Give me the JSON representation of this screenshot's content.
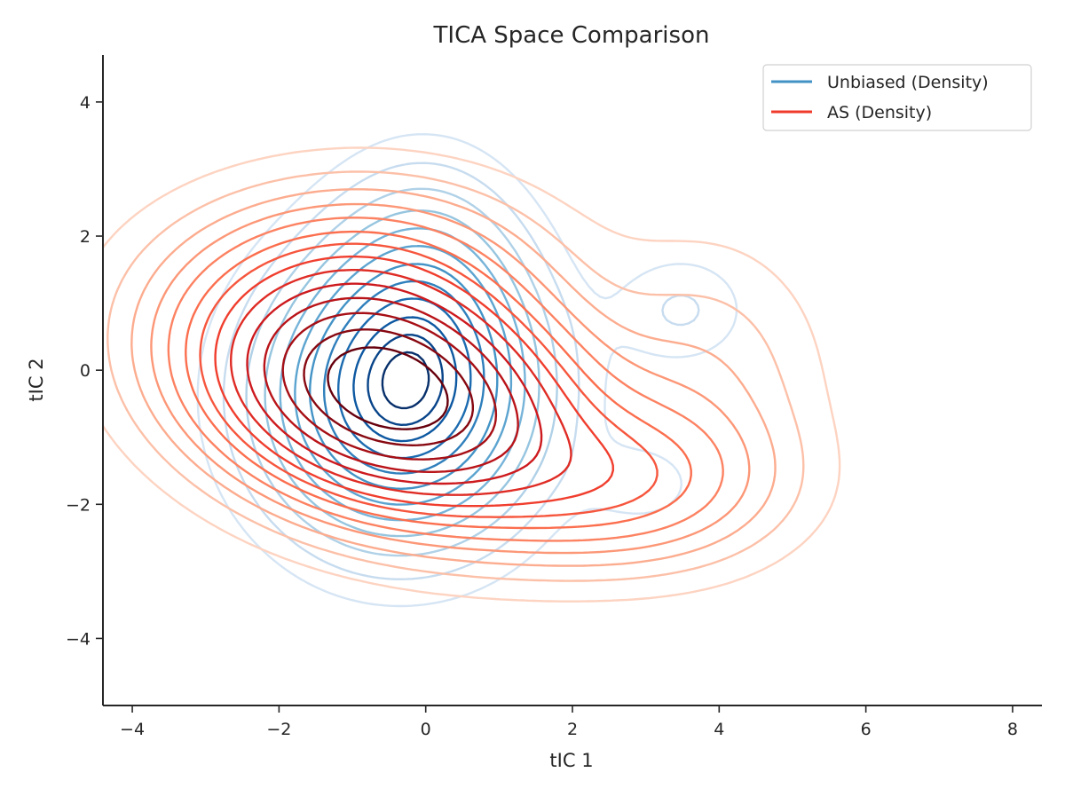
{
  "chart_data": {
    "type": "contour",
    "title": "TICA Space Comparison",
    "xlabel": "tIC 1",
    "ylabel": "tIC 2",
    "xlim": [
      -4.4,
      8.4
    ],
    "ylim": [
      -5.0,
      4.7
    ],
    "xticks": [
      -4,
      -2,
      0,
      2,
      4,
      6,
      8
    ],
    "yticks": [
      -4,
      -2,
      0,
      2,
      4
    ],
    "xtick_labels": [
      "−4",
      "−2",
      "0",
      "2",
      "4",
      "6",
      "8"
    ],
    "ytick_labels": [
      "−4",
      "−2",
      "0",
      "2",
      "4"
    ],
    "grid": false,
    "legend_position": "top-right",
    "series": [
      {
        "name": "Unbiased (Density)",
        "color": "#4292c6",
        "colormap": "Blues",
        "legend_color": "#4292c6",
        "components": [
          {
            "cx": -0.35,
            "cy": -0.4,
            "sx": 1.15,
            "sy": 1.3,
            "rot": 0,
            "weight": 1.0
          },
          {
            "cx": 0.0,
            "cy": 1.2,
            "sx": 0.85,
            "sy": 1.2,
            "rot": 0,
            "weight": 0.3
          },
          {
            "cx": 3.5,
            "cy": 0.9,
            "sx": 0.6,
            "sy": 0.55,
            "rot": 0,
            "weight": 0.12
          },
          {
            "cx": 3.0,
            "cy": -1.7,
            "sx": 0.55,
            "sy": 0.45,
            "rot": 0,
            "weight": 0.08
          }
        ],
        "levels": [
          0.05,
          0.1,
          0.17,
          0.25,
          0.33,
          0.42,
          0.52,
          0.62,
          0.72,
          0.82,
          0.9,
          0.96
        ]
      },
      {
        "name": "AS (Density)",
        "color": "#ef3b2c",
        "colormap": "Reds",
        "legend_color": "#ef3b2c",
        "components": [
          {
            "cx": -0.5,
            "cy": -0.35,
            "sx": 1.55,
            "sy": 1.0,
            "rot": -0.28,
            "weight": 1.0
          },
          {
            "cx": 2.6,
            "cy": -1.7,
            "sx": 1.3,
            "sy": 0.75,
            "rot": 0,
            "weight": 0.2
          },
          {
            "cx": -0.8,
            "cy": 1.4,
            "sx": 1.5,
            "sy": 0.9,
            "rot": 0,
            "weight": 0.18
          },
          {
            "cx": 3.8,
            "cy": -0.2,
            "sx": 1.0,
            "sy": 1.3,
            "rot": 0,
            "weight": 0.07
          }
        ],
        "levels": [
          0.02,
          0.045,
          0.075,
          0.11,
          0.15,
          0.2,
          0.25,
          0.31,
          0.38,
          0.46,
          0.55,
          0.65,
          0.76,
          0.87
        ]
      }
    ]
  }
}
